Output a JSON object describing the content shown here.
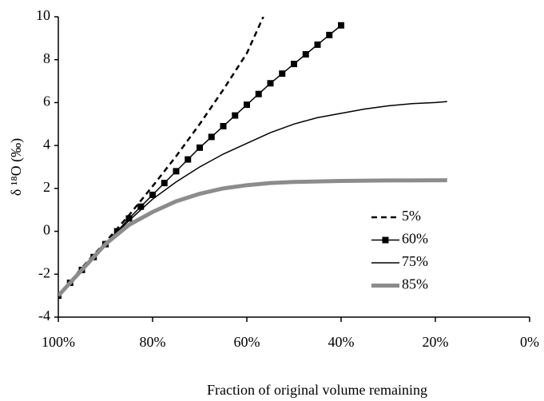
{
  "chart_data": {
    "type": "line",
    "x_label": "Fraction of original volume remaining",
    "y_label": "δ ¹⁸O (‰)",
    "xlim": [
      100,
      0
    ],
    "xticks": [
      {
        "value": 100,
        "label": "100%"
      },
      {
        "value": 80,
        "label": "80%"
      },
      {
        "value": 60,
        "label": "60%"
      },
      {
        "value": 40,
        "label": "40%"
      },
      {
        "value": 20,
        "label": "20%"
      },
      {
        "value": 0,
        "label": "0%"
      }
    ],
    "ylim": [
      -4,
      10
    ],
    "yticks": [
      -4,
      -2,
      0,
      2,
      4,
      6,
      8,
      10
    ],
    "grid": false,
    "legend": "right",
    "series": [
      {
        "name": "5%",
        "color": "#000000",
        "line_style": "dashed",
        "line_width": 2.5,
        "marker": "none",
        "x": [
          100,
          95,
          90,
          85,
          80,
          75,
          70,
          65,
          60,
          56.5
        ],
        "values": [
          -3,
          -1.7,
          -0.5,
          0.75,
          2.1,
          3.5,
          5.0,
          6.6,
          8.3,
          10
        ]
      },
      {
        "name": "60%",
        "color": "#000000",
        "line_style": "solid",
        "line_width": 1.5,
        "marker": "square",
        "x": [
          100,
          97.5,
          95,
          92.5,
          90,
          87.5,
          85,
          82.5,
          80,
          77.5,
          75,
          72.5,
          70,
          67.5,
          65,
          62.5,
          60,
          57.5,
          55,
          52.5,
          50,
          47.5,
          45,
          42.5,
          40
        ],
        "values": [
          -3,
          -2.4,
          -1.8,
          -1.2,
          -0.6,
          0,
          0.6,
          1.15,
          1.7,
          2.25,
          2.8,
          3.35,
          3.9,
          4.4,
          4.9,
          5.4,
          5.9,
          6.4,
          6.9,
          7.35,
          7.8,
          8.25,
          8.7,
          9.15,
          9.6
        ]
      },
      {
        "name": "75%",
        "color": "#000000",
        "line_style": "solid",
        "line_width": 1.5,
        "marker": "none",
        "x": [
          100,
          90,
          85,
          80,
          75,
          70,
          65,
          60,
          55,
          50,
          45,
          40,
          35,
          30,
          25,
          20,
          17.5
        ],
        "values": [
          -3,
          -0.6,
          0.5,
          1.5,
          2.3,
          3.0,
          3.6,
          4.1,
          4.6,
          5.0,
          5.3,
          5.5,
          5.7,
          5.85,
          5.95,
          6.0,
          6.05
        ]
      },
      {
        "name": "85%",
        "color": "#8c8c8c",
        "line_style": "solid",
        "line_width": 5,
        "marker": "none",
        "x": [
          100,
          90,
          85,
          80,
          75,
          70,
          65,
          60,
          55,
          50,
          40,
          30,
          17.5
        ],
        "values": [
          -3,
          -0.6,
          0.3,
          0.9,
          1.4,
          1.75,
          2.0,
          2.15,
          2.25,
          2.3,
          2.35,
          2.37,
          2.38
        ]
      }
    ]
  }
}
